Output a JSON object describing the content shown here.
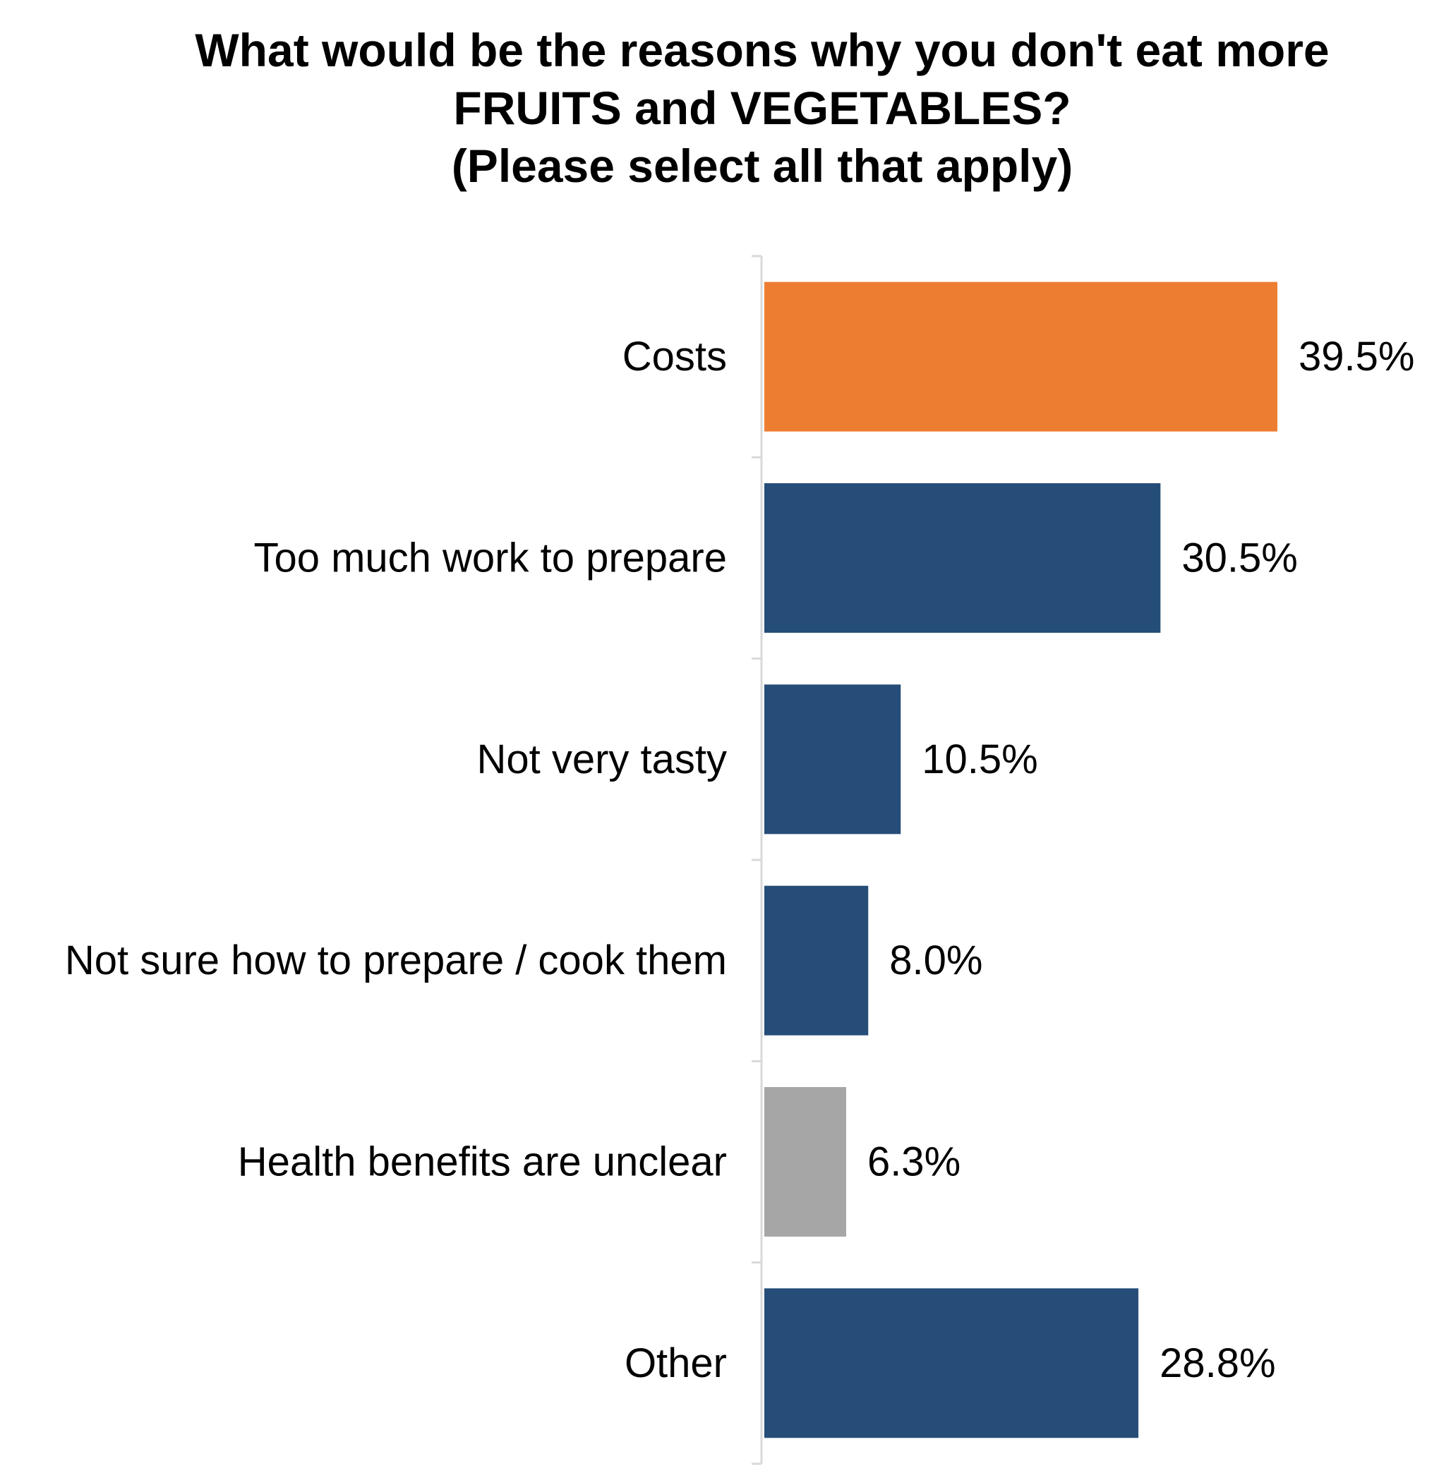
{
  "chart_data": {
    "type": "bar",
    "orientation": "horizontal",
    "title": "What would be the reasons why you don't eat more\nFRUITS and VEGETABLES?\n(Please select all that apply)",
    "categories": [
      "Costs",
      "Too much work to prepare",
      "Not very tasty",
      "Not sure how to prepare / cook them",
      "Health benefits are unclear",
      "Other"
    ],
    "values": [
      39.5,
      30.5,
      10.5,
      8.0,
      6.3,
      28.8
    ],
    "value_labels": [
      "39.5%",
      "30.5%",
      "10.5%",
      "8.0%",
      "6.3%",
      "28.8%"
    ],
    "bar_colors": [
      "#ED7D31",
      "#264D78",
      "#264D78",
      "#264D78",
      "#A6A6A6",
      "#264D78"
    ],
    "xlim": [
      0,
      40
    ],
    "xlabel": "",
    "ylabel": "",
    "grid": false,
    "legend": "none",
    "axis_color": "#D9D9D9"
  }
}
